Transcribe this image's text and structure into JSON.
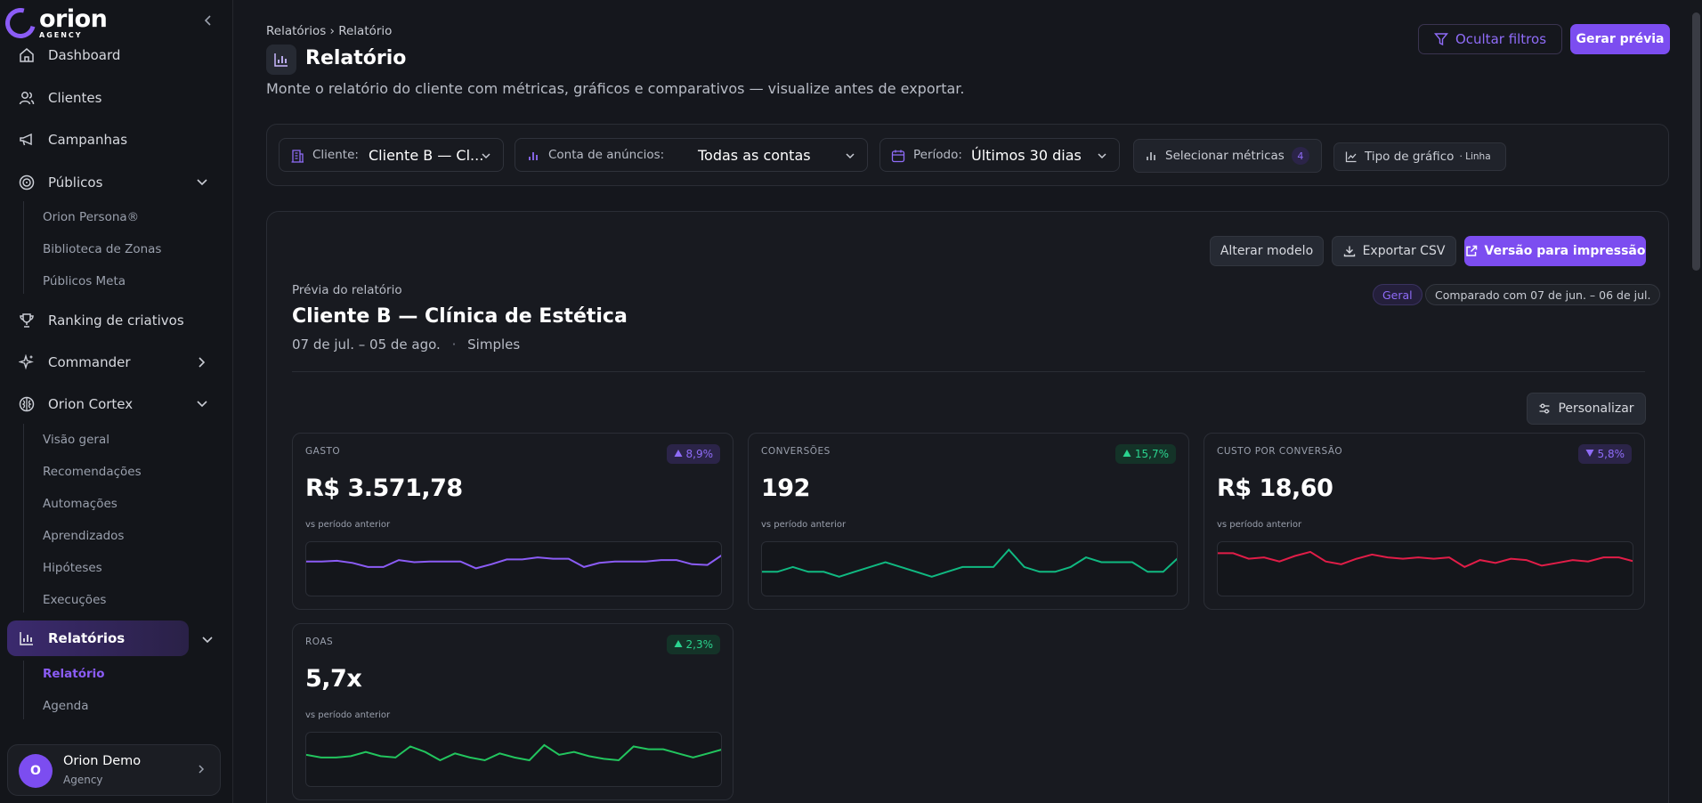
{
  "brand": {
    "name": "orion",
    "sub": "AGENCY"
  },
  "sidebar": {
    "items": [
      {
        "label": "Dashboard"
      },
      {
        "label": "Clientes"
      },
      {
        "label": "Campanhas"
      },
      {
        "label": "Públicos"
      },
      {
        "label": "Ranking de criativos"
      },
      {
        "label": "Commander"
      },
      {
        "label": "Orion Cortex"
      },
      {
        "label": "Relatórios"
      }
    ],
    "publicos_sub": [
      "Orion Persona®",
      "Biblioteca de Zonas",
      "Públicos Meta"
    ],
    "cortex_sub": [
      "Visão geral",
      "Recomendações",
      "Automações",
      "Aprendizados",
      "Hipóteses",
      "Execuções"
    ],
    "relatorios_sub": [
      "Relatório",
      "Agenda"
    ],
    "user": {
      "initial": "O",
      "name": "Orion Demo",
      "role": "Agency"
    }
  },
  "header": {
    "breadcrumb": "Relatórios › Relatório",
    "title": "Relatório",
    "subtitle": "Monte o relatório do cliente com métricas, gráficos e comparativos — visualize antes de exportar.",
    "hide_filters": "Ocultar filtros",
    "generate": "Gerar prévia"
  },
  "filters": {
    "client_label": "Cliente:",
    "client_value": "Cliente B — Cl...",
    "account_label": "Conta de anúncios:",
    "account_value": "Todas as contas",
    "period_label": "Período:",
    "period_value": "Últimos 30 dias",
    "metrics_label": "Selecionar métricas",
    "metrics_count": "4",
    "chart_label": "Tipo de gráfico",
    "chart_value": "· Linha"
  },
  "report": {
    "change_model": "Alterar modelo",
    "export_csv": "Exportar CSV",
    "print_version": "Versão para impressão",
    "label": "Prévia do relatório",
    "title": "Cliente B — Clínica de Estética",
    "date_range": "07 de jul. – 05 de ago.",
    "separator": "·",
    "template": "Simples",
    "pill_general": "Geral",
    "pill_compare": "Comparado com 07 de jun. – 06 de jul.",
    "customize": "Personalizar"
  },
  "cards": [
    {
      "label": "GASTO",
      "change": "8,9%",
      "direction": "up",
      "value": "R$ 3.571,78",
      "note": "vs período anterior",
      "color": "#8b5cf6",
      "badge_bg": "#2b2448",
      "badge_fg": "#8f6cf8",
      "series": [
        52,
        52,
        53,
        50,
        44,
        44,
        54,
        51,
        52,
        52,
        52,
        42,
        48,
        55,
        55,
        58,
        56,
        56,
        44,
        50,
        52,
        52,
        52,
        54,
        54,
        48,
        47,
        62
      ]
    },
    {
      "label": "CONVERSÕES",
      "change": "15,7%",
      "direction": "up",
      "value": "192",
      "note": "vs período anterior",
      "color": "#10b981",
      "badge_bg": "#143328",
      "badge_fg": "#2bd48f",
      "series": [
        37,
        37,
        44,
        37,
        37,
        30,
        37,
        44,
        51,
        44,
        37,
        30,
        37,
        44,
        44,
        44,
        69,
        44,
        37,
        37,
        44,
        58,
        51,
        51,
        51,
        37,
        37,
        58
      ]
    },
    {
      "label": "CUSTO POR CONVERSÃO",
      "change": "5,8%",
      "direction": "down",
      "value": "R$ 18,60",
      "note": "vs período anterior",
      "color": "#e11d48",
      "badge_bg": "#2b2448",
      "badge_fg": "#8f6cf8",
      "series": [
        64,
        64,
        56,
        58,
        52,
        60,
        66,
        52,
        48,
        56,
        62,
        58,
        56,
        58,
        56,
        58,
        44,
        54,
        50,
        56,
        54,
        46,
        50,
        54,
        52,
        58,
        58,
        52
      ]
    },
    {
      "label": "ROAS",
      "change": "2,3%",
      "direction": "up",
      "value": "5,7x",
      "note": "vs período anterior",
      "color": "#22c55e",
      "badge_bg": "#143328",
      "badge_fg": "#2bd48f",
      "series": [
        48,
        44,
        44,
        46,
        52,
        46,
        44,
        60,
        52,
        40,
        50,
        44,
        40,
        50,
        44,
        40,
        62,
        48,
        52,
        46,
        42,
        40,
        60,
        56,
        56,
        50,
        44,
        50,
        56
      ]
    }
  ],
  "colors": {
    "accent": "#7c4df0",
    "bg": "#15171d"
  }
}
